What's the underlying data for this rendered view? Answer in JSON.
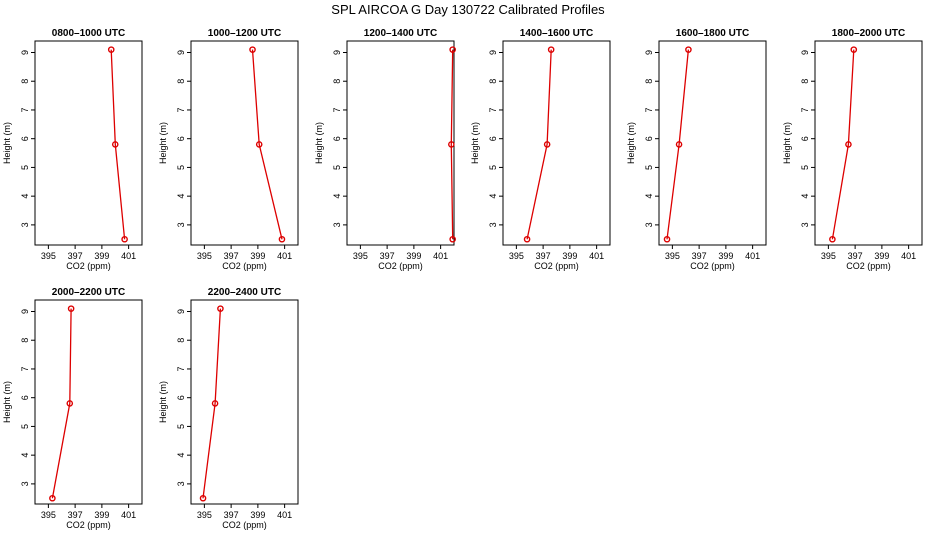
{
  "title": "SPL AIRCOA G  Day 130722  Calibrated Profiles",
  "colors": {
    "line": "#dd0000",
    "axis": "#000000"
  },
  "chart_data": [
    {
      "type": "line",
      "title": "0800–1000 UTC",
      "xlabel": "CO2 (ppm)",
      "ylabel": "Height (m)",
      "xlim": [
        394,
        402
      ],
      "ylim": [
        2.3,
        9.4
      ],
      "xticks": [
        395,
        397,
        399,
        401
      ],
      "yticks": [
        3,
        4,
        5,
        6,
        7,
        8,
        9
      ],
      "grid": false,
      "x": [
        399.7,
        400.0,
        400.7
      ],
      "y": [
        9.1,
        5.8,
        2.5
      ]
    },
    {
      "type": "line",
      "title": "1000–1200 UTC",
      "xlabel": "CO2 (ppm)",
      "ylabel": "Height (m)",
      "xlim": [
        394,
        402
      ],
      "ylim": [
        2.3,
        9.4
      ],
      "xticks": [
        395,
        397,
        399,
        401
      ],
      "yticks": [
        3,
        4,
        5,
        6,
        7,
        8,
        9
      ],
      "grid": false,
      "x": [
        398.6,
        399.1,
        400.8
      ],
      "y": [
        9.1,
        5.8,
        2.5
      ]
    },
    {
      "type": "line",
      "title": "1200–1400 UTC",
      "xlabel": "CO2 (ppm)",
      "ylabel": "Height (m)",
      "xlim": [
        394,
        402
      ],
      "ylim": [
        2.3,
        9.4
      ],
      "xticks": [
        395,
        397,
        399,
        401
      ],
      "yticks": [
        3,
        4,
        5,
        6,
        7,
        8,
        9
      ],
      "grid": false,
      "x": [
        401.9,
        401.8,
        401.9
      ],
      "y": [
        9.1,
        5.8,
        2.5
      ]
    },
    {
      "type": "line",
      "title": "1400–1600 UTC",
      "xlabel": "CO2 (ppm)",
      "ylabel": "Height (m)",
      "xlim": [
        394,
        402
      ],
      "ylim": [
        2.3,
        9.4
      ],
      "xticks": [
        395,
        397,
        399,
        401
      ],
      "yticks": [
        3,
        4,
        5,
        6,
        7,
        8,
        9
      ],
      "grid": false,
      "x": [
        397.6,
        397.3,
        395.8
      ],
      "y": [
        9.1,
        5.8,
        2.5
      ]
    },
    {
      "type": "line",
      "title": "1600–1800 UTC",
      "xlabel": "CO2 (ppm)",
      "ylabel": "Height (m)",
      "xlim": [
        394,
        402
      ],
      "ylim": [
        2.3,
        9.4
      ],
      "xticks": [
        395,
        397,
        399,
        401
      ],
      "yticks": [
        3,
        4,
        5,
        6,
        7,
        8,
        9
      ],
      "grid": false,
      "x": [
        396.2,
        395.5,
        394.6
      ],
      "y": [
        9.1,
        5.8,
        2.5
      ]
    },
    {
      "type": "line",
      "title": "1800–2000 UTC",
      "xlabel": "CO2 (ppm)",
      "ylabel": "Height (m)",
      "xlim": [
        394,
        402
      ],
      "ylim": [
        2.3,
        9.4
      ],
      "xticks": [
        395,
        397,
        399,
        401
      ],
      "yticks": [
        3,
        4,
        5,
        6,
        7,
        8,
        9
      ],
      "grid": false,
      "x": [
        396.9,
        396.5,
        395.3
      ],
      "y": [
        9.1,
        5.8,
        2.5
      ]
    },
    {
      "type": "line",
      "title": "2000–2200 UTC",
      "xlabel": "CO2 (ppm)",
      "ylabel": "Height (m)",
      "xlim": [
        394,
        402
      ],
      "ylim": [
        2.3,
        9.4
      ],
      "xticks": [
        395,
        397,
        399,
        401
      ],
      "yticks": [
        3,
        4,
        5,
        6,
        7,
        8,
        9
      ],
      "grid": false,
      "x": [
        396.7,
        396.6,
        395.3
      ],
      "y": [
        9.1,
        5.8,
        2.5
      ]
    },
    {
      "type": "line",
      "title": "2200–2400 UTC",
      "xlabel": "CO2 (ppm)",
      "ylabel": "Height (m)",
      "xlim": [
        394,
        402
      ],
      "ylim": [
        2.3,
        9.4
      ],
      "xticks": [
        395,
        397,
        399,
        401
      ],
      "yticks": [
        3,
        4,
        5,
        6,
        7,
        8,
        9
      ],
      "grid": false,
      "x": [
        396.2,
        395.8,
        394.9
      ],
      "y": [
        9.1,
        5.8,
        2.5
      ]
    }
  ]
}
